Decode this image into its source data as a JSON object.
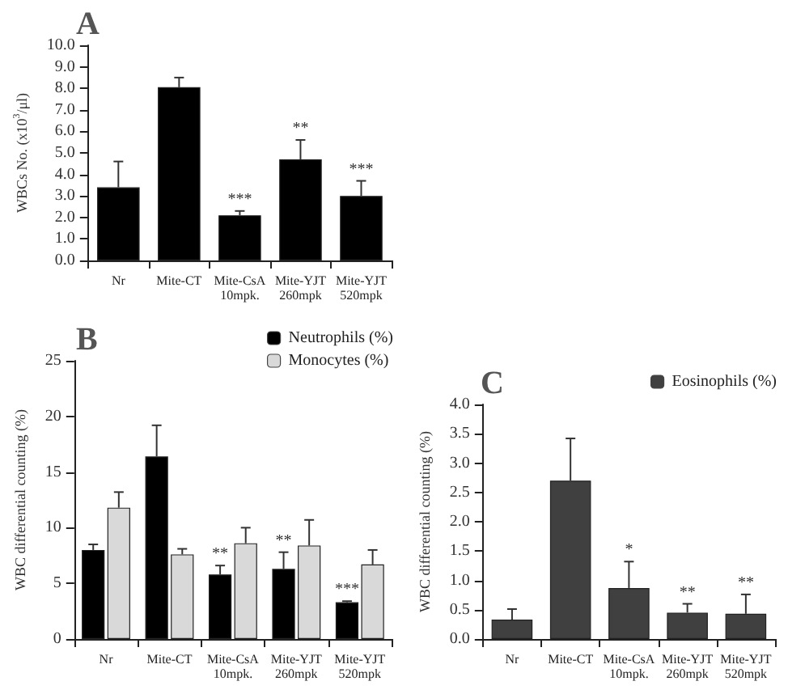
{
  "chart_data": [
    {
      "type": "bar",
      "title": "A",
      "ylabel": "WBCs No. (x10$^{3}$/μl)",
      "categories": [
        "Nr",
        "Mite-CT",
        "Mite-CsA\n10mpk.",
        "Mite-YJT\n260mpk",
        "Mite-YJT\n520mpk"
      ],
      "series": [
        {
          "color": "#000000",
          "values": [
            3.4,
            8.05,
            2.1,
            4.7,
            3.0
          ],
          "errors": [
            1.2,
            0.45,
            0.2,
            0.9,
            0.7
          ]
        }
      ],
      "ylim": [
        0,
        10
      ],
      "yticks": [
        {
          "value": 0,
          "label": "0.0"
        },
        {
          "value": 1,
          "label": "1.0"
        },
        {
          "value": 2,
          "label": "2.0"
        },
        {
          "value": 3,
          "label": "3.0"
        },
        {
          "value": 4,
          "label": "4.0"
        },
        {
          "value": 5,
          "label": "5.0"
        },
        {
          "value": 6,
          "label": "6.0"
        },
        {
          "value": 7,
          "label": "7.0"
        },
        {
          "value": 8,
          "label": "8.0"
        },
        {
          "value": 9,
          "label": "9.0"
        },
        {
          "value": 10,
          "label": "10.0"
        }
      ],
      "annotations": [
        {
          "text": "***",
          "x": "Mite-CsA\n10mpk.",
          "y": 2.3
        },
        {
          "text": "**",
          "x": "Mite-YJT\n260mpk",
          "y": 5.6
        },
        {
          "text": "***",
          "x": "Mite-YJT\n520mpk",
          "y": 3.7
        }
      ],
      "grid": false,
      "legend": false
    },
    {
      "type": "bar",
      "title": "B",
      "ylabel": "WBC differential counting (%)",
      "categories": [
        "Nr",
        "Mite-CT",
        "Mite-CsA\n10mpk.",
        "Mite-YJT\n260mpk",
        "Mite-YJT\n520mpk"
      ],
      "series": [
        {
          "name": "Neutrophils (%)",
          "color": "#000000",
          "values": [
            8.0,
            16.4,
            5.8,
            6.3,
            3.3
          ],
          "errors": [
            0.5,
            2.8,
            0.8,
            1.5,
            0.1
          ]
        },
        {
          "name": "Monocytes (%)",
          "color": "#d9d9d9",
          "values": [
            11.8,
            7.6,
            8.6,
            8.4,
            6.7
          ],
          "errors": [
            1.4,
            0.5,
            1.4,
            2.3,
            1.3
          ]
        }
      ],
      "ylim": [
        0,
        25
      ],
      "yticks": [
        0,
        5,
        10,
        15,
        20,
        25
      ],
      "annotations": [
        {
          "text": "**",
          "x": "Mite-CsA\n10mpk.",
          "y": 6.6
        },
        {
          "text": "**",
          "x": "Mite-YJT\n260mpk",
          "y": 7.8
        },
        {
          "text": "***",
          "x": "Mite-YJT\n520mpk",
          "y": 3.4
        }
      ],
      "grid": false,
      "legend": "top right"
    },
    {
      "type": "bar",
      "title": "C",
      "ylabel": "WBC differential counting (%)",
      "categories": [
        "Nr",
        "Mite-CT",
        "Mite-CsA\n10mpk.",
        "Mite-YJT\n260mpk",
        "Mite-YJT\n520mpk"
      ],
      "series": [
        {
          "name": "Eosinophils (%)",
          "color": "#404040",
          "values": [
            0.33,
            2.7,
            0.87,
            0.45,
            0.43
          ],
          "errors": [
            0.18,
            0.72,
            0.45,
            0.15,
            0.33
          ]
        }
      ],
      "ylim": [
        0,
        4
      ],
      "yticks": [
        {
          "value": 0,
          "label": "0.0"
        },
        {
          "value": 0.5,
          "label": "0.5"
        },
        {
          "value": 1,
          "label": "1.0"
        },
        {
          "value": 1.5,
          "label": "1.5"
        },
        {
          "value": 2,
          "label": "2.0"
        },
        {
          "value": 2.5,
          "label": "2.5"
        },
        {
          "value": 3,
          "label": "3.0"
        },
        {
          "value": 3.5,
          "label": "3.5"
        },
        {
          "value": 4,
          "label": "4.0"
        }
      ],
      "annotations": [
        {
          "text": "*",
          "x": "Mite-CsA\n10mpk.",
          "y": 1.32
        },
        {
          "text": "**",
          "x": "Mite-YJT\n260mpk",
          "y": 0.6
        },
        {
          "text": "**",
          "x": "Mite-YJT\n520mpk",
          "y": 0.76
        }
      ],
      "grid": false,
      "legend": "top right"
    }
  ]
}
